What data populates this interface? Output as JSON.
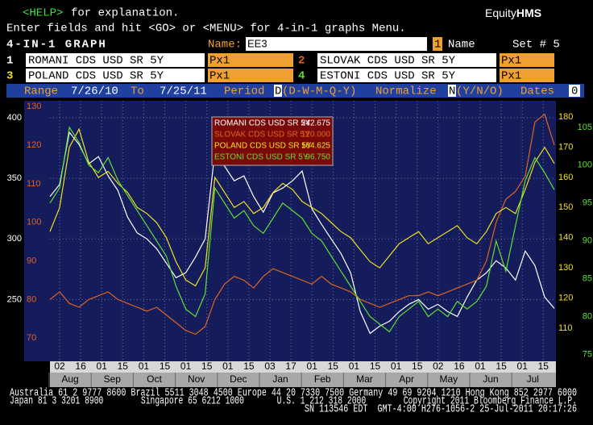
{
  "header": {
    "help": "<HELP>",
    "help_text": "for explanation.",
    "brand_1": "Equity",
    "brand_2": "HMS",
    "line2": "Enter fields and hit <GO> or <MENU> for 4-in-1 graphs Menu."
  },
  "form": {
    "title": "4-IN-1 GRAPH",
    "name_label": "Name:",
    "name_value": "EE3",
    "num": "1",
    "name_word": "Name",
    "set": "Set # 5",
    "rows": [
      {
        "n": "1",
        "security": "ROMANI CDS USD SR 5Y",
        "field": "Px1"
      },
      {
        "n": "2",
        "security": "SLOVAK CDS USD SR 5Y",
        "field": "Px1"
      },
      {
        "n": "3",
        "security": "POLAND CDS USD SR 5Y",
        "field": "Px1"
      },
      {
        "n": "4",
        "security": "ESTONI CDS USD SR 5Y",
        "field": "Px1"
      }
    ],
    "range_label": "Range",
    "from": "7/26/10",
    "to_label": "To",
    "to": "7/25/11",
    "period_label": "Period",
    "period": "D",
    "period_opts": "(D-W-M-Q-Y)",
    "normalize_label": "Normalize",
    "normalize": "N",
    "normalize_opts": "(Y/N/O)",
    "dates_label": "Dates",
    "dates": "0"
  },
  "chart_data": {
    "type": "line",
    "x_day_labels": [
      "02",
      "16",
      "01",
      "15",
      "01",
      "15",
      "01",
      "15",
      "01",
      "15",
      "03",
      "17",
      "01",
      "15",
      "01",
      "15",
      "01",
      "15",
      "02",
      "16",
      "01",
      "15",
      "01",
      "15"
    ],
    "x_month_labels": [
      "Aug",
      "Sep",
      "Oct",
      "Nov",
      "Dec",
      "Jan",
      "Feb",
      "Mar",
      "Apr",
      "May",
      "Jun",
      "Jul"
    ],
    "ylim": [
      199,
      414
    ],
    "yticks": [
      250,
      300,
      350,
      400
    ],
    "y2lim": [
      64,
      131.5
    ],
    "y2ticks": [
      70,
      80,
      90,
      100,
      110,
      120,
      130
    ],
    "y3lim": [
      99,
      185.4
    ],
    "y3ticks": [
      110,
      120,
      130,
      140,
      150,
      160,
      170,
      180
    ],
    "y4lim": [
      74.1,
      108.5
    ],
    "y4ticks": [
      75,
      80,
      85,
      90,
      95,
      100,
      105
    ],
    "grid": true,
    "series": [
      {
        "name": "ROMANI CDS USD SR 5Y",
        "color": "#ffffff",
        "axis": "y",
        "legend_value": "242.675",
        "values": [
          335,
          345,
          388,
          378,
          362,
          368,
          352,
          340,
          318,
          305,
          300,
          292,
          280,
          268,
          272,
          285,
          300,
          372,
          360,
          348,
          352,
          335,
          322,
          338,
          342,
          348,
          356,
          325,
          312,
          300,
          288,
          272,
          240,
          222,
          228,
          232,
          240,
          246,
          250,
          242,
          246,
          240,
          236,
          252,
          266,
          272,
          282,
          276,
          266,
          290,
          278,
          252,
          242.675
        ]
      },
      {
        "name": "SLOVAK CDS USD SR 5Y",
        "color": "#e0641e",
        "axis": "y2",
        "legend_value": "120.000",
        "values": [
          80,
          82,
          79,
          78,
          80,
          81,
          82,
          80,
          79,
          78,
          77,
          78,
          76,
          74,
          72,
          71,
          73,
          80,
          84,
          86,
          85,
          83,
          86,
          88,
          87,
          86,
          85,
          84,
          86,
          84,
          83,
          82,
          80,
          79,
          78,
          79,
          80,
          81,
          81,
          82,
          81,
          82,
          83,
          84,
          85,
          90,
          100,
          106,
          108,
          112,
          126,
          128,
          120
        ]
      },
      {
        "name": "POLAND CDS USD SR 5Y",
        "color": "#f0e020",
        "axis": "y3",
        "legend_value": "164.625",
        "values": [
          142,
          150,
          170,
          176,
          165,
          160,
          162,
          158,
          155,
          150,
          148,
          145,
          140,
          132,
          126,
          124,
          130,
          160,
          155,
          150,
          152,
          148,
          150,
          155,
          158,
          156,
          152,
          150,
          148,
          145,
          142,
          140,
          136,
          132,
          130,
          134,
          138,
          140,
          142,
          138,
          140,
          142,
          144,
          140,
          138,
          142,
          148,
          150,
          148,
          156,
          165,
          170,
          164.625
        ]
      },
      {
        "name": "ESTONI CDS USD SR 5Y",
        "color": "#60e030",
        "axis": "y4",
        "legend_value": "96.750",
        "values": [
          95,
          97,
          105,
          103,
          100,
          99,
          101,
          98,
          96,
          94,
          92,
          90,
          88,
          84,
          81,
          80,
          83,
          97,
          95,
          93,
          94,
          92,
          91,
          93,
          95,
          94,
          93,
          91,
          90,
          88,
          86,
          84,
          82,
          80,
          79,
          78,
          80,
          81,
          82,
          80,
          81,
          80,
          82,
          81,
          82,
          84,
          90,
          86,
          92,
          98,
          101,
          99,
          96.75
        ]
      }
    ]
  },
  "footer": [
    "Australia 61 2 9777 8600 Brazil 5511 3048 4500 Europe 44 20 7330 7500 Germany 49 69 9204 1210 Hong Kong 852 2977 6000",
    "Japan 81 3 3201 8900        Singapore 65 6212 1000       U.S. 1 212 318 2000        Copyright 2011 Bloomberg Finance L.P.",
    "SN 113546 EDT  GMT-4:00 H276-1056-2 25-Jul-2011 20:17:26"
  ]
}
